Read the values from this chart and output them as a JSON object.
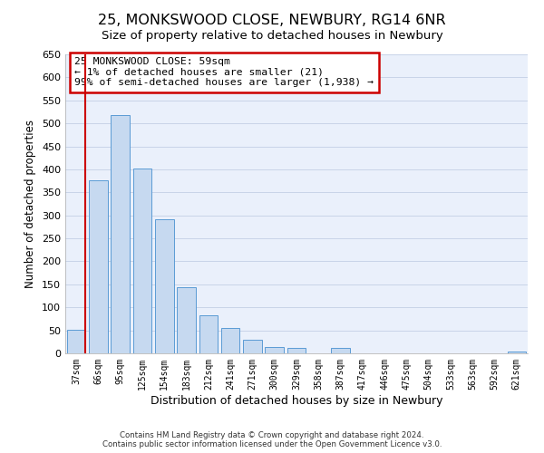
{
  "title": "25, MONKSWOOD CLOSE, NEWBURY, RG14 6NR",
  "subtitle": "Size of property relative to detached houses in Newbury",
  "xlabel": "Distribution of detached houses by size in Newbury",
  "ylabel": "Number of detached properties",
  "bar_labels": [
    "37sqm",
    "66sqm",
    "95sqm",
    "125sqm",
    "154sqm",
    "183sqm",
    "212sqm",
    "241sqm",
    "271sqm",
    "300sqm",
    "329sqm",
    "358sqm",
    "387sqm",
    "417sqm",
    "446sqm",
    "475sqm",
    "504sqm",
    "533sqm",
    "563sqm",
    "592sqm",
    "621sqm"
  ],
  "bar_values": [
    52,
    376,
    518,
    401,
    291,
    144,
    82,
    56,
    30,
    13,
    11,
    0,
    11,
    0,
    0,
    0,
    0,
    0,
    0,
    0,
    3
  ],
  "bar_color": "#c6d9f0",
  "bar_edge_color": "#5b9bd5",
  "highlight_color": "#cc0000",
  "annotation_title": "25 MONKSWOOD CLOSE: 59sqm",
  "annotation_line1": "← 1% of detached houses are smaller (21)",
  "annotation_line2": "99% of semi-detached houses are larger (1,938) →",
  "annotation_box_color": "#ffffff",
  "annotation_box_edge": "#cc0000",
  "ylim": [
    0,
    650
  ],
  "yticks": [
    0,
    50,
    100,
    150,
    200,
    250,
    300,
    350,
    400,
    450,
    500,
    550,
    600,
    650
  ],
  "footer1": "Contains HM Land Registry data © Crown copyright and database right 2024.",
  "footer2": "Contains public sector information licensed under the Open Government Licence v3.0.",
  "bg_color": "#ffffff",
  "plot_bg_color": "#eaf0fb",
  "grid_color": "#c8d4e8",
  "title_fontsize": 11.5,
  "subtitle_fontsize": 9.5
}
